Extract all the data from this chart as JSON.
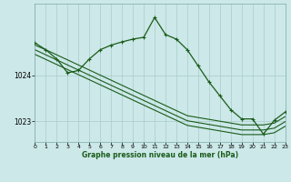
{
  "background_color": "#cce8e8",
  "grid_color": "#aacccc",
  "line_color": "#1a5c1a",
  "x_label": "Graphe pression niveau de la mer (hPa)",
  "x_ticks": [
    0,
    1,
    2,
    3,
    4,
    5,
    6,
    7,
    8,
    9,
    10,
    11,
    12,
    13,
    14,
    15,
    16,
    17,
    18,
    19,
    20,
    21,
    22,
    23
  ],
  "ylim": [
    1022.55,
    1025.55
  ],
  "y_ticks": [
    1023,
    1024
  ],
  "xlim": [
    0,
    23
  ],
  "series_linear1": [
    1024.65,
    1024.55,
    1024.44,
    1024.33,
    1024.22,
    1024.11,
    1024.0,
    1023.89,
    1023.78,
    1023.67,
    1023.56,
    1023.45,
    1023.34,
    1023.23,
    1023.12,
    1023.08,
    1023.04,
    1023.0,
    1022.96,
    1022.92,
    1022.92,
    1022.92,
    1022.96,
    1023.1
  ],
  "series_linear2": [
    1024.55,
    1024.44,
    1024.33,
    1024.22,
    1024.11,
    1024.0,
    1023.89,
    1023.78,
    1023.67,
    1023.56,
    1023.45,
    1023.34,
    1023.23,
    1023.12,
    1023.01,
    1022.97,
    1022.93,
    1022.89,
    1022.85,
    1022.81,
    1022.81,
    1022.81,
    1022.85,
    1022.99
  ],
  "series_linear3": [
    1024.45,
    1024.34,
    1024.23,
    1024.12,
    1024.01,
    1023.9,
    1023.79,
    1023.68,
    1023.57,
    1023.46,
    1023.35,
    1023.24,
    1023.13,
    1023.02,
    1022.91,
    1022.87,
    1022.83,
    1022.79,
    1022.75,
    1022.71,
    1022.71,
    1022.71,
    1022.75,
    1022.89
  ],
  "series_main_x": [
    0,
    1,
    2,
    3,
    4,
    5,
    6,
    7,
    8,
    9,
    10,
    11,
    12,
    13,
    14,
    15,
    16,
    17,
    18,
    19,
    20,
    21,
    22,
    23
  ],
  "series_main_y": [
    1024.7,
    1024.55,
    1024.35,
    1024.05,
    1024.1,
    1024.35,
    1024.55,
    1024.65,
    1024.72,
    1024.78,
    1024.82,
    1025.25,
    1024.88,
    1024.78,
    1024.55,
    1024.2,
    1023.85,
    1023.55,
    1023.25,
    1023.05,
    1023.05,
    1022.72,
    1023.02,
    1023.2
  ]
}
